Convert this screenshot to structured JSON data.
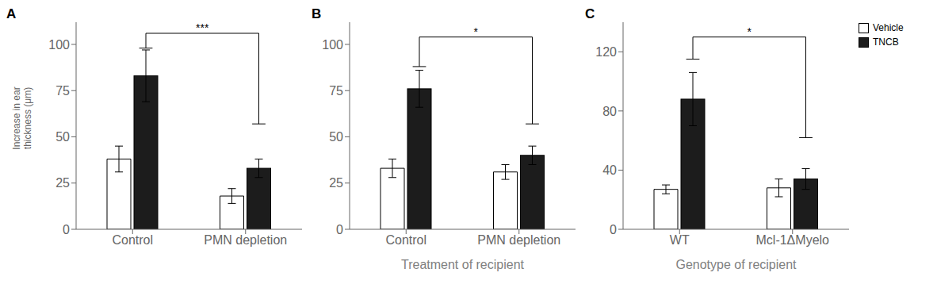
{
  "chart_data": [
    {
      "type": "bar",
      "title": "A",
      "categories": [
        "Control",
        "PMN depletion"
      ],
      "series": [
        {
          "name": "Vehicle",
          "color": "#ffffff",
          "values": [
            38,
            18
          ],
          "errors": [
            7,
            4
          ]
        },
        {
          "name": "TNCB",
          "color": "#1c1c1c",
          "values": [
            83,
            33
          ],
          "errors": [
            14,
            5
          ]
        }
      ],
      "ylim": [
        0,
        112
      ],
      "yticks": [
        0,
        25,
        50,
        75,
        100
      ],
      "y_label": "Increase in ear\nthickness (μm)",
      "grid": false,
      "annotations": [
        {
          "text": "***",
          "y": 106,
          "left_y": 98,
          "right_y": 57
        }
      ]
    },
    {
      "type": "bar",
      "title": "B",
      "categories": [
        "Control",
        "PMN depletion"
      ],
      "series": [
        {
          "name": "Vehicle",
          "color": "#ffffff",
          "values": [
            33,
            31
          ],
          "errors": [
            5,
            4
          ]
        },
        {
          "name": "TNCB",
          "color": "#1c1c1c",
          "values": [
            76,
            40
          ],
          "errors": [
            10,
            5
          ]
        }
      ],
      "ylim": [
        0,
        112
      ],
      "yticks": [
        0,
        25,
        50,
        75,
        100
      ],
      "x_label": "Treatment of recipient",
      "grid": false,
      "annotations": [
        {
          "text": "*",
          "y": 104,
          "left_y": 88,
          "right_y": 57
        }
      ]
    },
    {
      "type": "bar",
      "title": "C",
      "categories": [
        "WT",
        "Mcl-1ΔMyelo"
      ],
      "series": [
        {
          "name": "Vehicle",
          "color": "#ffffff",
          "values": [
            27,
            28
          ],
          "errors": [
            3,
            6
          ]
        },
        {
          "name": "TNCB",
          "color": "#1c1c1c",
          "values": [
            88,
            34
          ],
          "errors": [
            18,
            7
          ]
        }
      ],
      "ylim": [
        0,
        140
      ],
      "yticks": [
        0,
        40,
        80,
        120
      ],
      "x_label": "Genotype of recipient",
      "grid": false,
      "legend": "upper right",
      "annotations": [
        {
          "text": "*",
          "y": 130,
          "left_y": 115,
          "right_y": 62
        }
      ]
    }
  ]
}
